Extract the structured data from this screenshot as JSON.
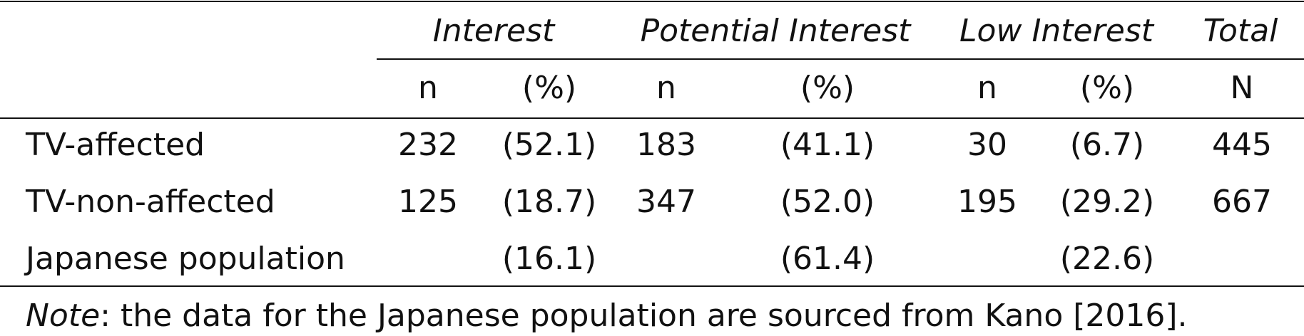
{
  "table": {
    "group_headers": {
      "interest": "Interest",
      "potential_interest": "Potential Interest",
      "low_interest": "Low Interest",
      "total": "Total"
    },
    "sub_headers": {
      "interest_n": "n",
      "interest_pct": "(%)",
      "potential_n": "n",
      "potential_pct": "(%)",
      "low_n": "n",
      "low_pct": "(%)",
      "total_N": "N"
    },
    "rows": [
      {
        "label": "TV-affected",
        "interest_n": "232",
        "interest_pct": "(52.1)",
        "potential_n": "183",
        "potential_pct": "(41.1)",
        "low_n": "30",
        "low_pct": "(6.7)",
        "total": "445"
      },
      {
        "label": "TV-non-affected",
        "interest_n": "125",
        "interest_pct": "(18.7)",
        "potential_n": "347",
        "potential_pct": "(52.0)",
        "low_n": "195",
        "low_pct": "(29.2)",
        "total": "667"
      },
      {
        "label": "Japanese population",
        "interest_n": "",
        "interest_pct": "(16.1)",
        "potential_n": "",
        "potential_pct": "(61.4)",
        "low_n": "",
        "low_pct": "(22.6)",
        "total": ""
      }
    ],
    "note": {
      "label": "Note",
      "text": ": the data for the Japanese population are sourced from Kano [2016]."
    }
  }
}
